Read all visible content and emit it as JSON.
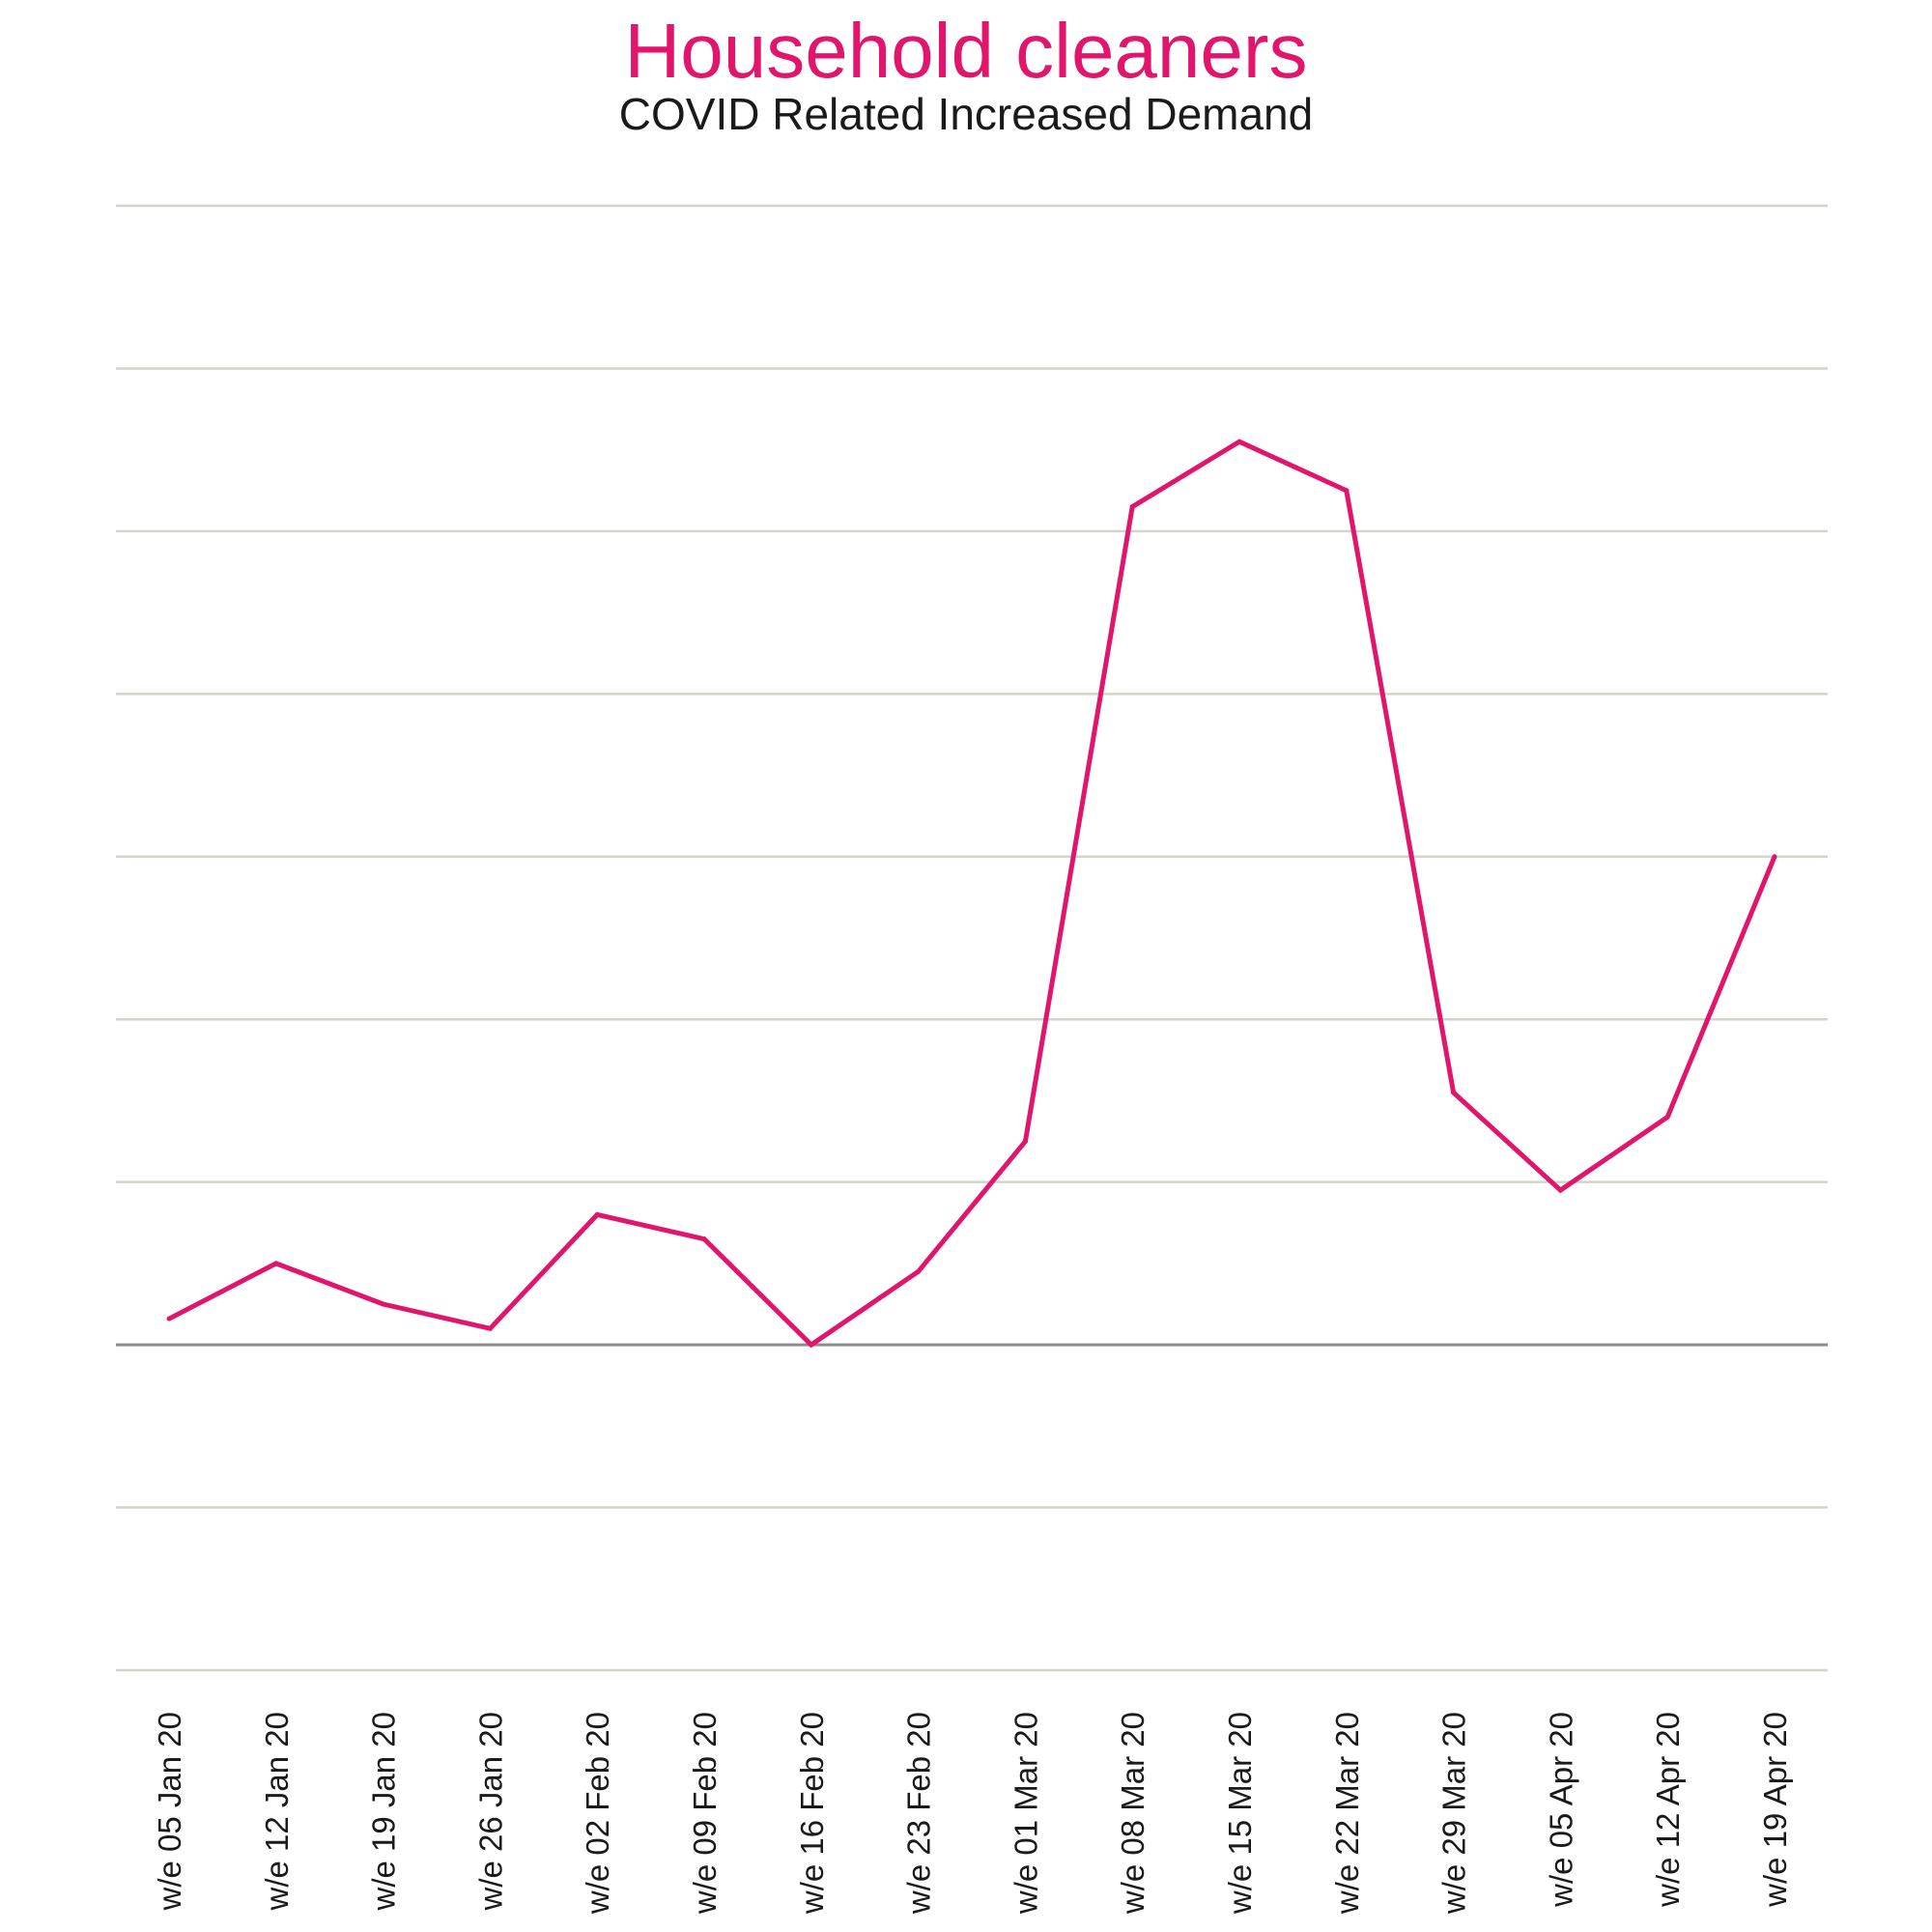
{
  "colors": {
    "accent": "#e0156b",
    "grid": "#d4d4cc",
    "baseline": "#8c8c88",
    "text": "#1a1a1a"
  },
  "chart_data": {
    "type": "line",
    "title": "Household cleaners",
    "subtitle": "COVID Related Increased Demand",
    "xlabel": "",
    "ylabel": "",
    "ylim": [
      -2,
      7
    ],
    "grid": true,
    "categories": [
      "w/e 05 Jan 20",
      "w/e 12 Jan 20",
      "w/e 19 Jan 20",
      "w/e 26 Jan 20",
      "w/e 02 Feb 20",
      "w/e 09 Feb 20",
      "w/e 16 Feb 20",
      "w/e 23 Feb 20",
      "w/e 01 Mar 20",
      "w/e 08 Mar 20",
      "w/e 15 Mar 20",
      "w/e 22 Mar 20",
      "w/e 29 Mar 20",
      "w/e 05 Apr 20",
      "w/e 12 Apr 20",
      "w/e 19 Apr 20"
    ],
    "series": [
      {
        "values": [
          0.16,
          0.5,
          0.25,
          0.1,
          0.8,
          0.65,
          0.0,
          0.45,
          1.25,
          5.15,
          5.55,
          5.25,
          1.55,
          0.95,
          1.4,
          3.0
        ]
      }
    ]
  }
}
